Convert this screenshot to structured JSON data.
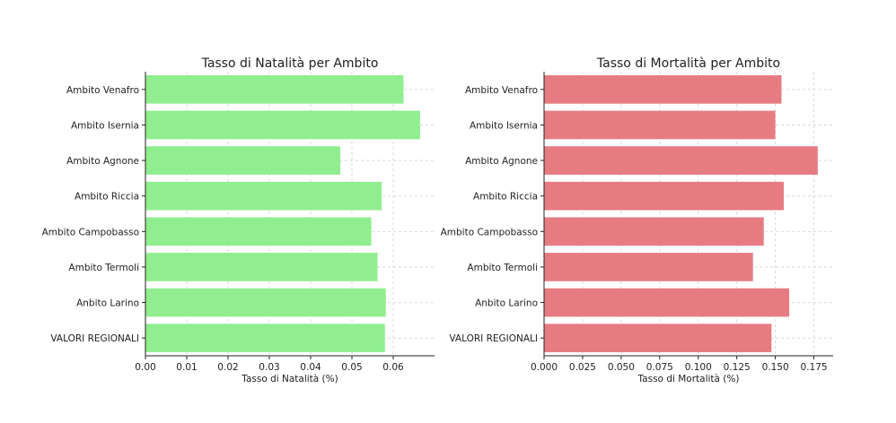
{
  "chart_data": [
    {
      "type": "bar",
      "orientation": "horizontal",
      "title": "Tasso di Natalità per Ambito",
      "xlabel": "Tasso di Natalità (%)",
      "ylabel": "",
      "categories": [
        "Ambito Venafro",
        "Ambito Isernia",
        "Ambito Agnone",
        "Ambito Riccia",
        "Ambito Campobasso",
        "Ambito Termoli",
        "Anbito Larino",
        "VALORI REGIONALI"
      ],
      "values": [
        0.0625,
        0.0665,
        0.0472,
        0.0572,
        0.0547,
        0.0562,
        0.0582,
        0.058
      ],
      "xlim": [
        0,
        0.07
      ],
      "xticks": [
        "0.00",
        "0.01",
        "0.02",
        "0.03",
        "0.04",
        "0.05",
        "0.06"
      ],
      "color": "#90ee90",
      "grid": true
    },
    {
      "type": "bar",
      "orientation": "horizontal",
      "title": "Tasso di Mortalità per Ambito",
      "xlabel": "Tasso di Mortalità (%)",
      "ylabel": "",
      "categories": [
        "Ambito Venafro",
        "Ambito Isernia",
        "Ambito Agnone",
        "Ambito Riccia",
        "Ambito Campobasso",
        "Ambito Termoli",
        "Anbito Larino",
        "VALORI REGIONALI"
      ],
      "values": [
        0.154,
        0.15,
        0.1775,
        0.1555,
        0.1425,
        0.1355,
        0.159,
        0.1475
      ],
      "xlim": [
        0,
        0.1875
      ],
      "xticks": [
        "0.000",
        "0.025",
        "0.050",
        "0.075",
        "0.100",
        "0.125",
        "0.150",
        "0.175"
      ],
      "color": "#e67c82",
      "grid": true
    }
  ]
}
